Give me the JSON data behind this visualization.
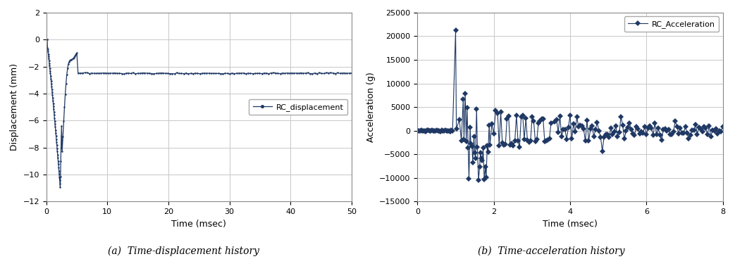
{
  "disp_color": "#1f3864",
  "accel_color": "#1f3864",
  "disp_xlabel": "Time (msec)",
  "disp_ylabel": "Displacement (mm)",
  "accel_xlabel": "Time (msec)",
  "accel_ylabel": "Acceleration (g)",
  "disp_legend": "RC_displacement",
  "accel_legend": "RC_Acceleration",
  "caption_a": "(a)  Time-displacement history",
  "caption_b": "(b)  Time-acceleration history",
  "disp_xlim": [
    0,
    50
  ],
  "disp_ylim": [
    -12,
    2
  ],
  "disp_yticks": [
    -12,
    -10,
    -8,
    -6,
    -4,
    -2,
    0,
    2
  ],
  "disp_xticks": [
    0,
    10,
    20,
    30,
    40,
    50
  ],
  "accel_xlim": [
    0,
    8
  ],
  "accel_ylim": [
    -15000,
    25000
  ],
  "accel_yticks": [
    -15000,
    -10000,
    -5000,
    0,
    5000,
    10000,
    15000,
    20000,
    25000
  ],
  "accel_xticks": [
    0,
    2,
    4,
    6,
    8
  ],
  "background_color": "#ffffff",
  "grid_color": "#c8c8c8",
  "spine_color": "#888888"
}
